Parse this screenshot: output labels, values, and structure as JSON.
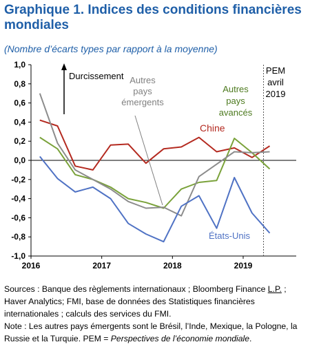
{
  "title": "Graphique 1. Indices des conditions financières mondiales",
  "subtitle": "(Nombre d’écarts types par rapport à la moyenne)",
  "chart_data": {
    "type": "line",
    "x_ticks": [
      "2016",
      "2017",
      "2018",
      "2019"
    ],
    "x": [
      "2016Q1",
      "2016Q2",
      "2016Q3",
      "2016Q4",
      "2017Q1",
      "2017Q2",
      "2017Q3",
      "2017Q4",
      "2018Q1",
      "2018Q2",
      "2018Q3",
      "2018Q4",
      "2019Q1",
      "2019Q2",
      "2019Q3"
    ],
    "ylim": [
      -1.0,
      1.0
    ],
    "y_ticks": [
      "1,0",
      "0,8",
      "0,6",
      "0,4",
      "0,2",
      "0,0",
      "-0,2",
      "-0,4",
      "-0,6",
      "-0,8",
      "-1,0"
    ],
    "vline_at": "2019Q2",
    "series": [
      {
        "name": "Chine",
        "color": "#b42a20",
        "values": [
          0.42,
          0.36,
          -0.06,
          -0.1,
          0.16,
          0.17,
          -0.03,
          0.12,
          0.14,
          0.24,
          0.09,
          0.13,
          0.03,
          0.15,
          null
        ]
      },
      {
        "name": "Autres pays avancés",
        "color": "#7aa23a",
        "values": [
          0.24,
          0.12,
          -0.15,
          -0.2,
          -0.28,
          -0.4,
          -0.44,
          -0.5,
          -0.3,
          -0.23,
          -0.21,
          0.23,
          0.08,
          -0.09,
          null
        ]
      },
      {
        "name": "Autres pays émergents",
        "color": "#8c8c8c",
        "values": [
          0.7,
          0.18,
          -0.1,
          -0.2,
          -0.3,
          -0.43,
          -0.5,
          -0.49,
          -0.58,
          -0.17,
          -0.04,
          0.09,
          0.08,
          0.09,
          null
        ]
      },
      {
        "name": "États-Unis",
        "color": "#4f72c4",
        "values": [
          0.04,
          -0.19,
          -0.33,
          -0.28,
          -0.4,
          -0.66,
          -0.77,
          -0.85,
          -0.48,
          -0.37,
          -0.71,
          -0.18,
          -0.55,
          -0.76,
          null
        ]
      }
    ],
    "annotations": {
      "durcissement": "Durcissement",
      "pem": [
        "PEM",
        "avril",
        "2019"
      ],
      "autres_emergents": [
        "Autres",
        "pays",
        "émergents"
      ],
      "autres_avances": [
        "Autres",
        "pays",
        "avancés"
      ],
      "chine": "Chine",
      "etats_unis": "États-Unis"
    }
  },
  "notes": {
    "sources_prefix": "Sources : Banque des règlements internationaux ; Bloomberg Finance ",
    "sources_lp": "L.P.",
    "sources_suffix": "; Haver Analytics; FMI, base de données des Statistiques financières internationales ; calculs des services du FMI.",
    "note_prefix": "Note : Les autres pays émergents sont le Brésil, l’Inde, Mexique, la Pologne, la Russie et la Turquie. PEM = ",
    "note_italic": "Perspectives de l’économie mondiale",
    "note_suffix": "."
  }
}
